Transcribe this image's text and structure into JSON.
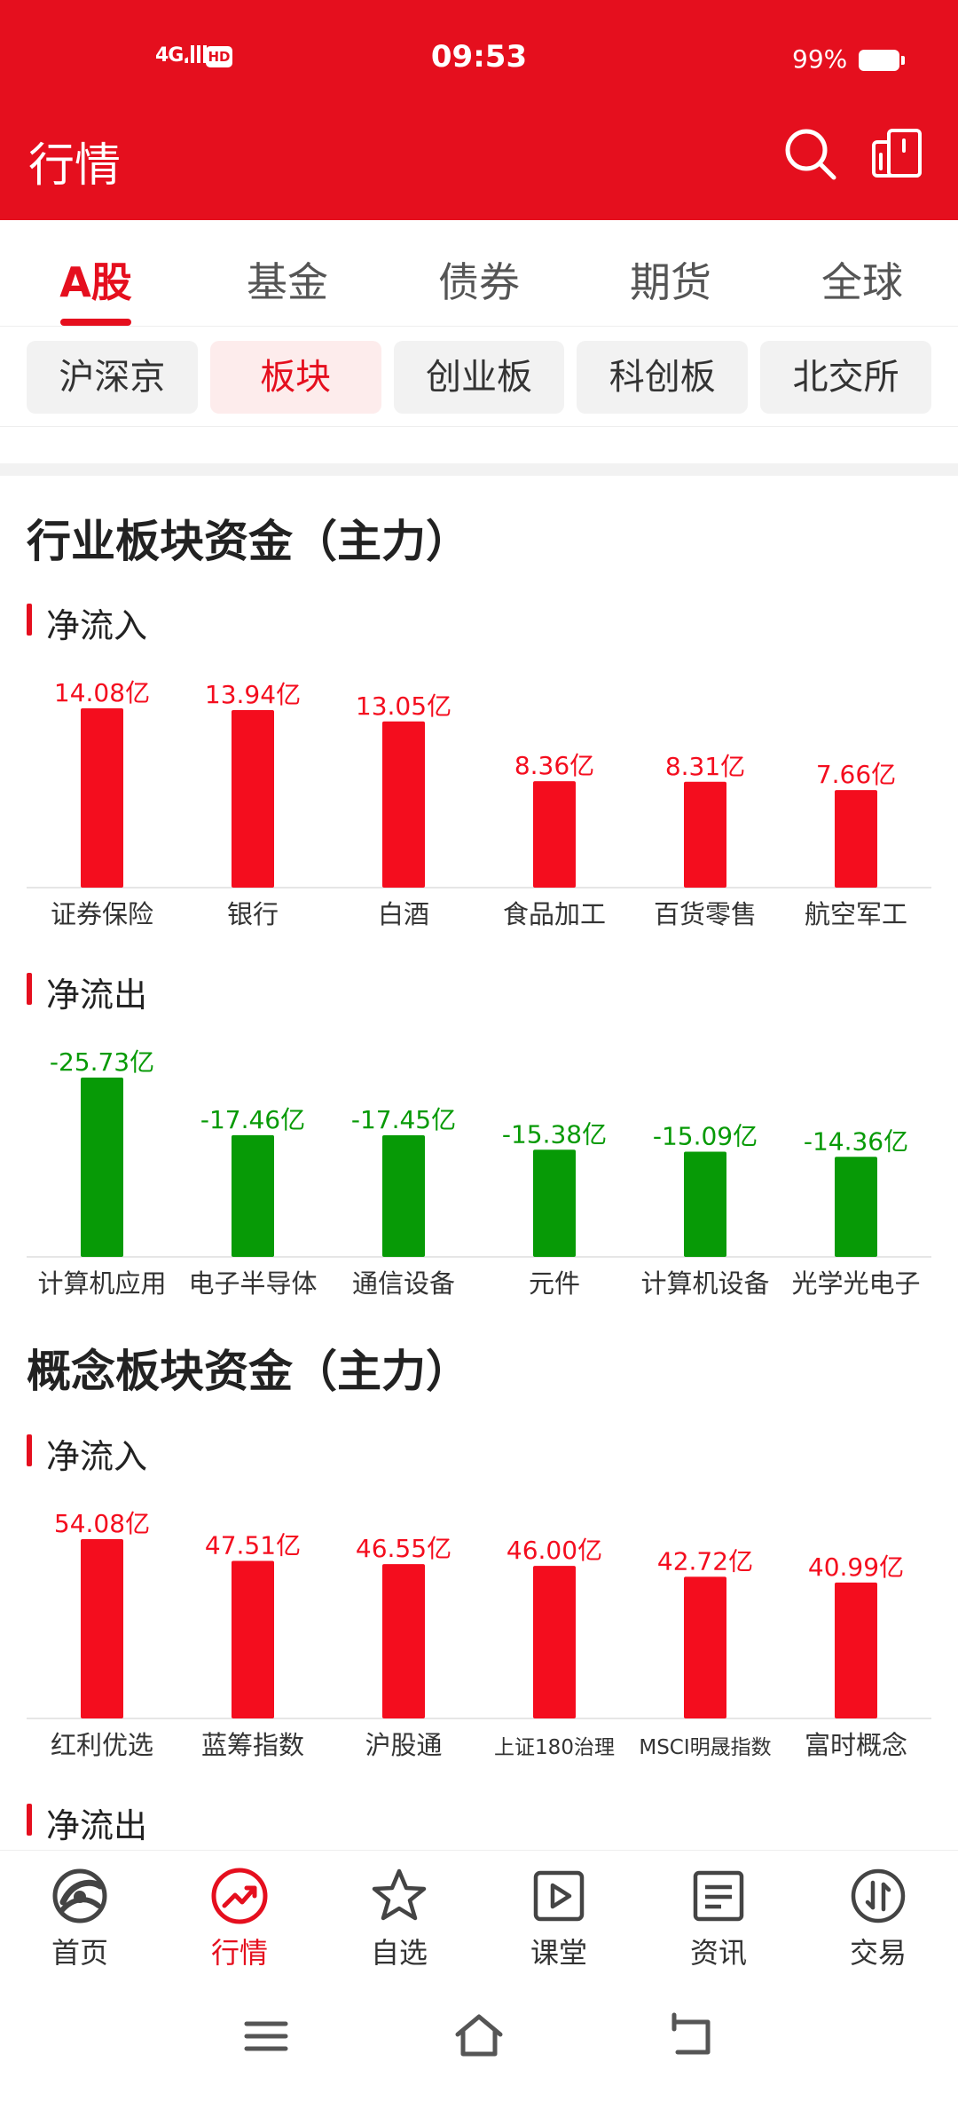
{
  "status_bar": {
    "network": "4G",
    "hd": "HD",
    "time": "09:53",
    "battery": "99%"
  },
  "header": {
    "title": "行情",
    "search_icon": "search-icon",
    "share_icon": "share-icon"
  },
  "main_tabs": [
    {
      "label": "A股",
      "active": true
    },
    {
      "label": "基金",
      "active": false
    },
    {
      "label": "债券",
      "active": false
    },
    {
      "label": "期货",
      "active": false
    },
    {
      "label": "全球",
      "active": false
    }
  ],
  "sub_tabs": [
    {
      "label": "沪深京",
      "active": false
    },
    {
      "label": "板块",
      "active": true
    },
    {
      "label": "创业板",
      "active": false
    },
    {
      "label": "科创板",
      "active": false
    },
    {
      "label": "北交所",
      "active": false
    }
  ],
  "industry": {
    "title": "行业板块资金（主力）",
    "inflow_title": "净流入",
    "outflow_title": "净流出"
  },
  "concept": {
    "title": "概念板块资金（主力）",
    "inflow_title": "净流入",
    "outflow_title": "净流出"
  },
  "colors": {
    "accent": "#E50F1E",
    "up": "#F40D1E",
    "down": "#079A06"
  },
  "chart_data": [
    {
      "type": "bar",
      "name": "industry-inflow",
      "categories": [
        "证券保险",
        "银行",
        "白酒",
        "食品加工",
        "百货零售",
        "航空军工"
      ],
      "values": [
        14.08,
        13.94,
        13.05,
        8.36,
        8.31,
        7.66
      ],
      "labels": [
        "14.08亿",
        "13.94亿",
        "13.05亿",
        "8.36亿",
        "8.31亿",
        "7.66亿"
      ],
      "unit": "亿"
    },
    {
      "type": "bar",
      "name": "industry-outflow",
      "categories": [
        "计算机应用",
        "电子半导体",
        "通信设备",
        "元件",
        "计算机设备",
        "光学光电子"
      ],
      "values": [
        -25.73,
        -17.46,
        -17.45,
        -15.38,
        -15.09,
        -14.36
      ],
      "labels": [
        "-25.73亿",
        "-17.46亿",
        "-17.45亿",
        "-15.38亿",
        "-15.09亿",
        "-14.36亿"
      ],
      "unit": "亿"
    },
    {
      "type": "bar",
      "name": "concept-inflow",
      "categories": [
        "红利优选",
        "蓝筹指数",
        "沪股通",
        "上证180治理",
        "MSCI明晟指数",
        "富时概念"
      ],
      "values": [
        54.08,
        47.51,
        46.55,
        46.0,
        42.72,
        40.99
      ],
      "labels": [
        "54.08亿",
        "47.51亿",
        "46.55亿",
        "46.00亿",
        "42.72亿",
        "40.99亿"
      ],
      "unit": "亿"
    }
  ],
  "bottom_nav": [
    {
      "label": "首页",
      "icon": "home-logo-icon",
      "active": false
    },
    {
      "label": "行情",
      "icon": "market-trend-icon",
      "active": true
    },
    {
      "label": "自选",
      "icon": "star-icon",
      "active": false
    },
    {
      "label": "课堂",
      "icon": "play-icon",
      "active": false
    },
    {
      "label": "资讯",
      "icon": "news-icon",
      "active": false
    },
    {
      "label": "交易",
      "icon": "trade-icon",
      "active": false
    }
  ]
}
